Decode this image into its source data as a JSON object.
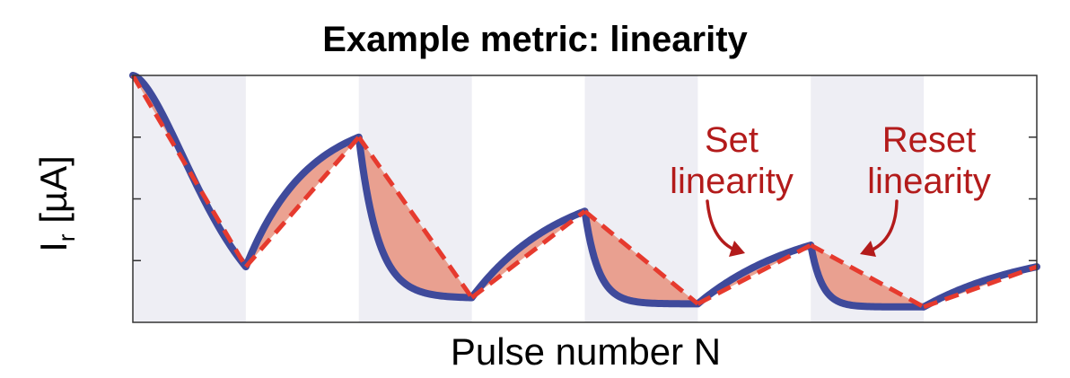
{
  "chart_data": {
    "type": "line",
    "title": "Example metric: linearity",
    "xlabel": "Pulse number N",
    "ylabel_main": "I",
    "ylabel_sub": "r",
    "ylabel_unit": " [µA]",
    "xlim": [
      0,
      8
    ],
    "ylim": [
      0,
      4
    ],
    "yticks": [
      1,
      2,
      3
    ],
    "shaded_intervals": [
      [
        0,
        1
      ],
      [
        2,
        3
      ],
      [
        4,
        5
      ],
      [
        6,
        7
      ]
    ],
    "segments": [
      {
        "phase": "reset",
        "x0": 0,
        "x1": 1,
        "y0": 4.0,
        "y1": 0.9,
        "k": 0.7
      },
      {
        "phase": "set",
        "x0": 1,
        "x1": 2,
        "y0": 0.9,
        "y1": 3.0,
        "k": 0.55
      },
      {
        "phase": "reset",
        "x0": 2,
        "x1": 3,
        "y0": 3.0,
        "y1": 0.4,
        "k": 0.17
      },
      {
        "phase": "set",
        "x0": 3,
        "x1": 4,
        "y0": 0.4,
        "y1": 1.8,
        "k": 0.8
      },
      {
        "phase": "reset",
        "x0": 4,
        "x1": 5,
        "y0": 1.8,
        "y1": 0.3,
        "k": 0.12
      },
      {
        "phase": "set",
        "x0": 5,
        "x1": 6,
        "y0": 0.3,
        "y1": 1.25,
        "k": 0.95
      },
      {
        "phase": "reset",
        "x0": 6,
        "x1": 7,
        "y0": 1.25,
        "y1": 0.25,
        "k": 0.1
      },
      {
        "phase": "set",
        "x0": 7,
        "x1": 8,
        "y0": 0.25,
        "y1": 0.9,
        "k": 1.0
      }
    ],
    "colors": {
      "curve": "#3f4a9b",
      "linear": "#e63a2e",
      "fill": "#e8927e",
      "shade": "#eeeef4",
      "annotation": "#b31b1b"
    }
  },
  "annotations": {
    "set": [
      "Set",
      "linearity"
    ],
    "reset": [
      "Reset",
      "linearity"
    ]
  }
}
